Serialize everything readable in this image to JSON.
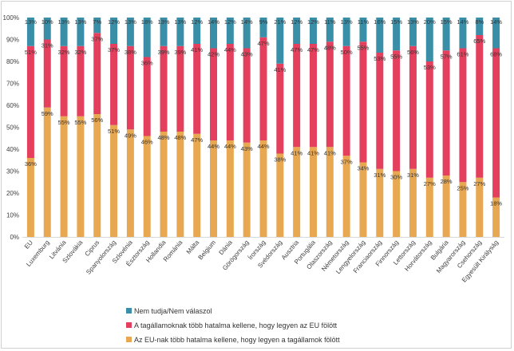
{
  "chart_data": {
    "type": "bar",
    "stacked": true,
    "percent": true,
    "categories": [
      "EU",
      "Luxemburg",
      "Litvánia",
      "Szlovákia",
      "Ciprus",
      "Spanyolország",
      "Szlovénia",
      "Észtország",
      "Hollandia",
      "Románia",
      "Málta",
      "Belgium",
      "Dánia",
      "Görögország",
      "Írország",
      "Svédország",
      "Ausztria",
      "Portugália",
      "Olaszország",
      "Németország",
      "Lengyelország",
      "Franciaország",
      "Finnország",
      "Lettország",
      "Horvátország",
      "Bulgária",
      "Magyarország",
      "Csehország",
      "Egyesült Királyság"
    ],
    "series": [
      {
        "name": "Az EU-nak több hatalma kellene, hogy legyen a tagállamok fölött",
        "color": "#E8A851",
        "values": [
          36,
          59,
          55,
          55,
          56,
          51,
          49,
          46,
          48,
          48,
          47,
          44,
          44,
          43,
          44,
          38,
          41,
          41,
          41,
          37,
          34,
          31,
          30,
          31,
          27,
          28,
          25,
          27,
          18
        ]
      },
      {
        "name": "A tagállamoknak több hatalma kellene, hogy legyen az EU fölött",
        "color": "#E4405E",
        "values": [
          51,
          31,
          32,
          32,
          37,
          37,
          38,
          36,
          39,
          39,
          41,
          42,
          44,
          43,
          47,
          41,
          47,
          47,
          48,
          50,
          55,
          53,
          55,
          56,
          53,
          57,
          61,
          65,
          68
        ]
      },
      {
        "name": "Nem tudja/Nem válaszol",
        "color": "#3A8FA8",
        "values": [
          13,
          10,
          13,
          13,
          7,
          12,
          13,
          18,
          13,
          13,
          12,
          14,
          12,
          14,
          9,
          21,
          12,
          12,
          11,
          13,
          11,
          16,
          15,
          13,
          20,
          15,
          14,
          8,
          14
        ]
      }
    ],
    "ylim": [
      0,
      100
    ],
    "yticks": [
      "0%",
      "10%",
      "20%",
      "30%",
      "40%",
      "50%",
      "60%",
      "70%",
      "80%",
      "90%",
      "100%"
    ],
    "legend_position": "bottom-left",
    "grid": false
  }
}
